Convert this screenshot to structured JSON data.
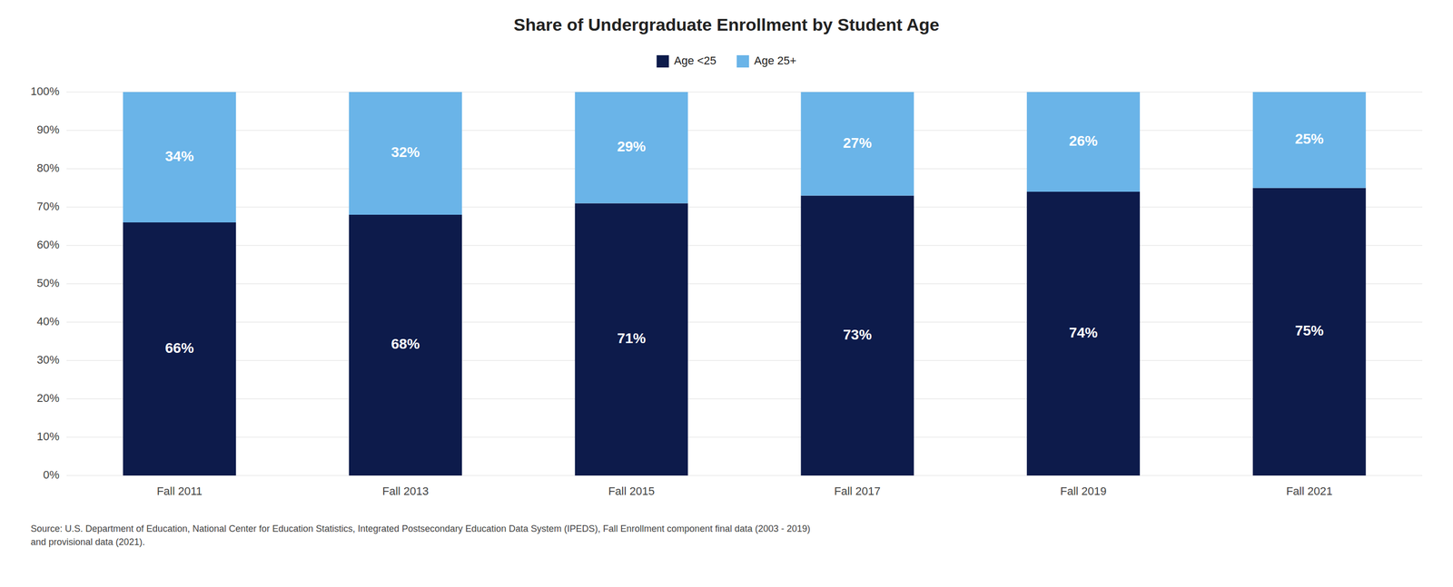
{
  "chart_data": {
    "type": "bar",
    "stacked": true,
    "title": "Share of Undergraduate Enrollment by Student Age",
    "categories": [
      "Fall 2011",
      "Fall 2013",
      "Fall 2015",
      "Fall 2017",
      "Fall 2019",
      "Fall 2021"
    ],
    "series": [
      {
        "name": "Age <25",
        "color": "#0d1b4b",
        "values": [
          66,
          68,
          71,
          73,
          74,
          75
        ],
        "value_labels": [
          "66%",
          "68%",
          "71%",
          "73%",
          "74%",
          "75%"
        ]
      },
      {
        "name": "Age 25+",
        "color": "#6ab4e8",
        "values": [
          34,
          32,
          29,
          27,
          26,
          25
        ],
        "value_labels": [
          "34%",
          "32%",
          "29%",
          "27%",
          "26%",
          "25%"
        ]
      }
    ],
    "ylim": [
      0,
      100
    ],
    "yticks": [
      {
        "value": 0,
        "label": "0%"
      },
      {
        "value": 10,
        "label": "10%"
      },
      {
        "value": 20,
        "label": "20%"
      },
      {
        "value": 30,
        "label": "30%"
      },
      {
        "value": 40,
        "label": "40%"
      },
      {
        "value": 50,
        "label": "50%"
      },
      {
        "value": 60,
        "label": "60%"
      },
      {
        "value": 70,
        "label": "70%"
      },
      {
        "value": 80,
        "label": "80%"
      },
      {
        "value": 90,
        "label": "90%"
      },
      {
        "value": 100,
        "label": "100%"
      }
    ],
    "grid": true,
    "legend": "top",
    "data_labels": true,
    "annotations": [
      "Source: U.S. Department of Education, National Center for Education Statistics, Integrated Postsecondary Education Data System (IPEDS), Fall Enrollment component final data (2003 - 2019)\nand provisional data (2021)."
    ]
  }
}
